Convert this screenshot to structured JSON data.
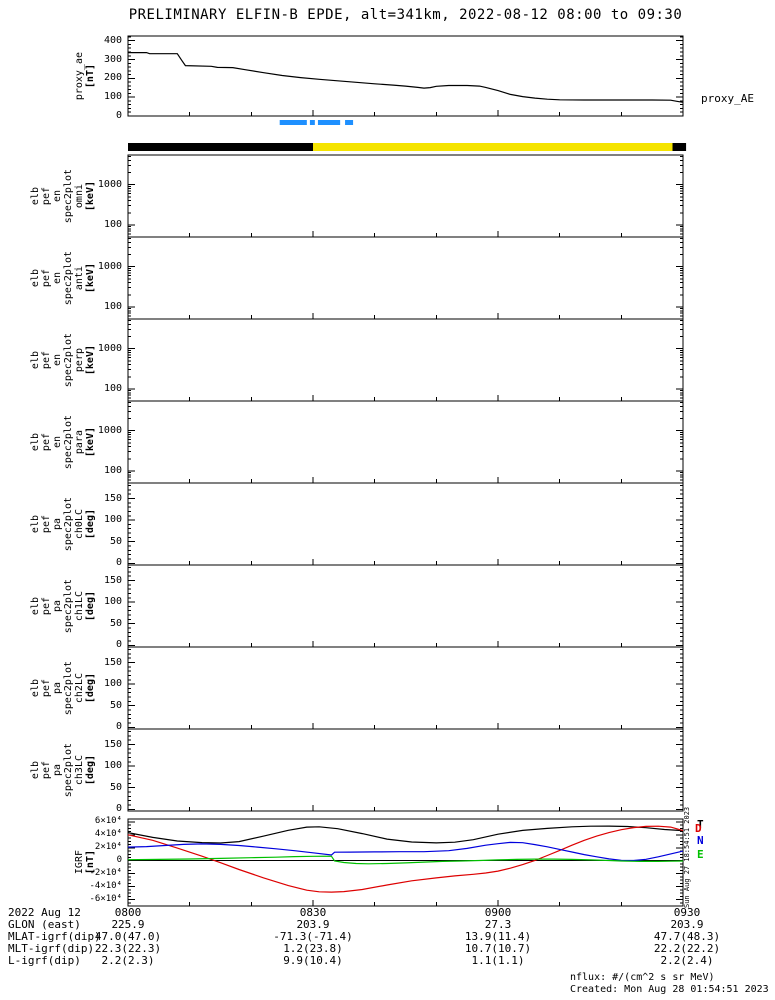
{
  "title": "PRELIMINARY ELFIN-B EPDE, alt=341km, 2022-08-12 08:00 to 09:30",
  "colors": {
    "background": "#ffffff",
    "axis": "#000000",
    "eclipse_yellow": "#f5e400",
    "status_dash_blue": "#1e90ff",
    "igrf_T": "#000000",
    "igrf_D": "#dd0000",
    "igrf_N": "#0000dd",
    "igrf_E": "#00c000"
  },
  "time_axis": {
    "span_minutes": 90,
    "minor_step_minutes": 10,
    "ticks": [
      {
        "minute": 0,
        "label": "0800"
      },
      {
        "minute": 30,
        "label": "0830"
      },
      {
        "minute": 60,
        "label": "0900"
      },
      {
        "minute": 90,
        "label": "0930"
      }
    ],
    "date_label": "2022 Aug 12"
  },
  "eclipse_bar": {
    "segments": [
      {
        "color": "#000000",
        "from_min": 0,
        "to_min": 30
      },
      {
        "color": "#f5e400",
        "from_min": 30,
        "to_min": 88.3
      },
      {
        "color": "#000000",
        "from_min": 88.3,
        "to_min": 90.5
      }
    ]
  },
  "status_dashes": {
    "color": "#1e90ff",
    "segments_min": [
      [
        24.6,
        29.0
      ],
      [
        29.5,
        30.3
      ],
      [
        30.8,
        34.4
      ],
      [
        35.2,
        36.5
      ]
    ]
  },
  "chart_data": [
    {
      "id": "proxy_ae",
      "type": "line",
      "ylabel": "proxy_ae [nT]",
      "right_label": "proxy_AE",
      "ylim": [
        0,
        425
      ],
      "yscale": "linear",
      "yticks": [
        0,
        100,
        200,
        300,
        400
      ],
      "ytick_labels": [
        "0",
        "100",
        "200",
        "300",
        "400"
      ],
      "x_unit": "minutes after 08:00 UT",
      "series": [
        {
          "name": "proxy_AE",
          "color": "#000000",
          "points": [
            [
              0,
              337
            ],
            [
              3,
              337
            ],
            [
              3.5,
              331
            ],
            [
              8,
              331
            ],
            [
              8.7,
              296
            ],
            [
              9.3,
              268
            ],
            [
              13.5,
              264
            ],
            [
              14.5,
              258
            ],
            [
              17,
              257
            ],
            [
              19,
              246
            ],
            [
              22,
              230
            ],
            [
              25,
              215
            ],
            [
              28,
              204
            ],
            [
              31,
              195
            ],
            [
              34,
              187
            ],
            [
              37,
              179
            ],
            [
              40,
              171
            ],
            [
              43,
              164
            ],
            [
              45,
              159
            ],
            [
              47,
              152
            ],
            [
              48,
              148
            ],
            [
              49,
              151
            ],
            [
              50,
              158
            ],
            [
              52,
              162
            ],
            [
              55,
              162
            ],
            [
              57,
              159
            ],
            [
              58,
              152
            ],
            [
              60,
              135
            ],
            [
              62,
              115
            ],
            [
              64,
              103
            ],
            [
              66,
              95
            ],
            [
              68,
              89
            ],
            [
              70,
              86
            ],
            [
              74,
              85
            ],
            [
              80,
              85
            ],
            [
              85,
              85
            ],
            [
              88,
              84
            ],
            [
              89,
              78
            ],
            [
              90,
              73
            ]
          ]
        }
      ]
    },
    {
      "id": "en_omni",
      "type": "spectrogram",
      "empty": true,
      "ylabel": "elb pef en spec2plot omni [keV]",
      "yscale": "log",
      "ylim": [
        50,
        5495
      ],
      "yticks": [
        100,
        1000
      ],
      "ytick_labels": [
        "100",
        "1000"
      ]
    },
    {
      "id": "en_anti",
      "type": "spectrogram",
      "empty": true,
      "ylabel": "elb pef en spec2plot anti [keV]",
      "yscale": "log",
      "ylim": [
        50,
        5495
      ],
      "yticks": [
        100,
        1000
      ],
      "ytick_labels": [
        "100",
        "1000"
      ]
    },
    {
      "id": "en_perp",
      "type": "spectrogram",
      "empty": true,
      "ylabel": "elb pef en spec2plot perp [keV]",
      "yscale": "log",
      "ylim": [
        50,
        5495
      ],
      "yticks": [
        100,
        1000
      ],
      "ytick_labels": [
        "100",
        "1000"
      ]
    },
    {
      "id": "en_para",
      "type": "spectrogram",
      "empty": true,
      "ylabel": "elb pef en spec2plot para [keV]",
      "yscale": "log",
      "ylim": [
        50,
        5495
      ],
      "yticks": [
        100,
        1000
      ],
      "ytick_labels": [
        "100",
        "1000"
      ]
    },
    {
      "id": "pa_ch0LC",
      "type": "spectrogram",
      "empty": true,
      "ylabel": "elb pef pa spec2plot ch0LC [deg]",
      "yscale": "linear",
      "ylim": [
        -4,
        186
      ],
      "yticks": [
        0,
        50,
        100,
        150
      ],
      "ytick_labels": [
        "0",
        "50",
        "100",
        "150"
      ]
    },
    {
      "id": "pa_ch1LC",
      "type": "spectrogram",
      "empty": true,
      "ylabel": "elb pef pa spec2plot ch1LC [deg]",
      "yscale": "linear",
      "ylim": [
        -4,
        186
      ],
      "yticks": [
        0,
        50,
        100,
        150
      ],
      "ytick_labels": [
        "0",
        "50",
        "100",
        "150"
      ]
    },
    {
      "id": "pa_ch2LC",
      "type": "spectrogram",
      "empty": true,
      "ylabel": "elb pef pa spec2plot ch2LC [deg]",
      "yscale": "linear",
      "ylim": [
        -4,
        186
      ],
      "yticks": [
        0,
        50,
        100,
        150
      ],
      "ytick_labels": [
        "0",
        "50",
        "100",
        "150"
      ]
    },
    {
      "id": "pa_ch3LC",
      "type": "spectrogram",
      "empty": true,
      "ylabel": "elb pef pa spec2plot ch3LC [deg]",
      "yscale": "linear",
      "ylim": [
        -4,
        186
      ],
      "yticks": [
        0,
        50,
        100,
        150
      ],
      "ytick_labels": [
        "0",
        "50",
        "100",
        "150"
      ]
    },
    {
      "id": "igrf",
      "type": "line",
      "ylabel": "IGRF [nT]",
      "ylim": [
        -70000,
        64500
      ],
      "yscale": "linear",
      "yticks": [
        -60000,
        -40000,
        -20000,
        0,
        20000,
        40000,
        60000
      ],
      "ytick_labels": [
        "-6×10⁴",
        "-4×10⁴",
        "-2×10⁴",
        "0",
        "2×10⁴",
        "4×10⁴",
        "6×10⁴"
      ],
      "legend": [
        {
          "label": "T",
          "color": "#000000"
        },
        {
          "label": "D",
          "color": "#dd0000"
        },
        {
          "label": "N",
          "color": "#0000dd"
        },
        {
          "label": "E",
          "color": "#00c000"
        }
      ],
      "series": [
        {
          "name": "T",
          "color": "#000000",
          "points": [
            [
              0,
              43500
            ],
            [
              4,
              36000
            ],
            [
              8,
              30500
            ],
            [
              12,
              28000
            ],
            [
              15,
              27400
            ],
            [
              18,
              29500
            ],
            [
              22,
              38000
            ],
            [
              26,
              47000
            ],
            [
              29,
              52000
            ],
            [
              31,
              52400
            ],
            [
              34,
              49500
            ],
            [
              38,
              42000
            ],
            [
              42,
              33500
            ],
            [
              46,
              29000
            ],
            [
              50,
              27600
            ],
            [
              53,
              28600
            ],
            [
              56,
              32500
            ],
            [
              60,
              41000
            ],
            [
              64,
              46800
            ],
            [
              68,
              50000
            ],
            [
              72,
              52400
            ],
            [
              75,
              53400
            ],
            [
              78,
              53600
            ],
            [
              81,
              52900
            ],
            [
              84,
              51000
            ],
            [
              87,
              48300
            ],
            [
              90,
              46500
            ]
          ]
        },
        {
          "name": "D",
          "color": "#dd0000",
          "points": [
            [
              0,
              40000
            ],
            [
              4,
              31500
            ],
            [
              8,
              19500
            ],
            [
              12,
              7000
            ],
            [
              15,
              -3000
            ],
            [
              18,
              -13500
            ],
            [
              22,
              -26500
            ],
            [
              26,
              -38500
            ],
            [
              29,
              -45500
            ],
            [
              31,
              -48000
            ],
            [
              33,
              -48500
            ],
            [
              35,
              -47800
            ],
            [
              38,
              -44500
            ],
            [
              42,
              -37500
            ],
            [
              46,
              -31000
            ],
            [
              50,
              -26500
            ],
            [
              53,
              -23500
            ],
            [
              56,
              -21000
            ],
            [
              58,
              -19000
            ],
            [
              60,
              -16000
            ],
            [
              62,
              -11500
            ],
            [
              64,
              -6000
            ],
            [
              66,
              500
            ],
            [
              68,
              8000
            ],
            [
              70,
              16000
            ],
            [
              72,
              24000
            ],
            [
              74,
              31500
            ],
            [
              76,
              38000
            ],
            [
              78,
              43500
            ],
            [
              80,
              48000
            ],
            [
              82,
              51200
            ],
            [
              84,
              53000
            ],
            [
              86,
              53400
            ],
            [
              88,
              52000
            ],
            [
              90,
              46500
            ]
          ]
        },
        {
          "name": "N",
          "color": "#0000dd",
          "points": [
            [
              0,
              21000
            ],
            [
              3,
              21800
            ],
            [
              6,
              23500
            ],
            [
              9,
              25300
            ],
            [
              12,
              26000
            ],
            [
              15,
              25200
            ],
            [
              18,
              23500
            ],
            [
              21,
              21000
            ],
            [
              24,
              18500
            ],
            [
              27,
              15500
            ],
            [
              30,
              12200
            ],
            [
              33,
              8800
            ],
            [
              33.5,
              13100
            ],
            [
              36,
              13300
            ],
            [
              40,
              13700
            ],
            [
              44,
              13900
            ],
            [
              48,
              14000
            ],
            [
              52,
              15500
            ],
            [
              55,
              19000
            ],
            [
              58,
              24000
            ],
            [
              60,
              26300
            ],
            [
              62,
              28300
            ],
            [
              64,
              27800
            ],
            [
              66,
              25000
            ],
            [
              68,
              21500
            ],
            [
              70,
              17500
            ],
            [
              72,
              13500
            ],
            [
              74,
              9500
            ],
            [
              76,
              6000
            ],
            [
              78,
              2800
            ],
            [
              80,
              700
            ],
            [
              82,
              400
            ],
            [
              84,
              2200
            ],
            [
              86,
              6000
            ],
            [
              88,
              10500
            ],
            [
              90,
              14800
            ]
          ]
        },
        {
          "name": "E",
          "color": "#00c000",
          "points": [
            [
              0,
              1600
            ],
            [
              5,
              2100
            ],
            [
              10,
              2700
            ],
            [
              15,
              3600
            ],
            [
              20,
              4600
            ],
            [
              24,
              5500
            ],
            [
              27,
              6300
            ],
            [
              30,
              6900
            ],
            [
              32,
              7000
            ],
            [
              33,
              6900
            ],
            [
              33.5,
              -500
            ],
            [
              35,
              -2800
            ],
            [
              37,
              -4300
            ],
            [
              39,
              -4700
            ],
            [
              42,
              -4300
            ],
            [
              45,
              -3400
            ],
            [
              48,
              -2200
            ],
            [
              51,
              -1100
            ],
            [
              54,
              -400
            ],
            [
              57,
              300
            ],
            [
              60,
              1300
            ],
            [
              63,
              2100
            ],
            [
              66,
              2500
            ],
            [
              69,
              2500
            ],
            [
              72,
              2000
            ],
            [
              75,
              1300
            ],
            [
              78,
              300
            ],
            [
              80,
              -500
            ],
            [
              83,
              -1000
            ],
            [
              86,
              -1000
            ],
            [
              88,
              -700
            ],
            [
              90,
              -500
            ]
          ]
        }
      ]
    }
  ],
  "ephemeris": {
    "row_labels": [
      "2022 Aug 12",
      "GLON (east)",
      "MLAT-igrf(dip)",
      "MLT-igrf(dip)",
      "L-igrf(dip)"
    ],
    "columns": [
      {
        "time": "0800",
        "values": [
          "225.9",
          "47.0(47.0)",
          "22.3(22.3)",
          "2.2(2.3)"
        ]
      },
      {
        "time": "0830",
        "values": [
          "203.9",
          "-71.3(-71.4)",
          "1.2(23.8)",
          "9.9(10.4)"
        ]
      },
      {
        "time": "0900",
        "values": [
          "27.3",
          "13.9(11.4)",
          "10.7(10.7)",
          "1.1(1.1)"
        ]
      },
      {
        "time": "0930",
        "values": [
          "203.9",
          "47.7(48.3)",
          "22.2(22.2)",
          "2.2(2.4)"
        ]
      }
    ]
  },
  "footer": {
    "nflux_units": "nflux: #/(cm^2 s sr MeV)",
    "created": "Created: Mon Aug 28 01:54:51 2023",
    "side_created": "Sun Aug 27 18:54:51 2023"
  }
}
